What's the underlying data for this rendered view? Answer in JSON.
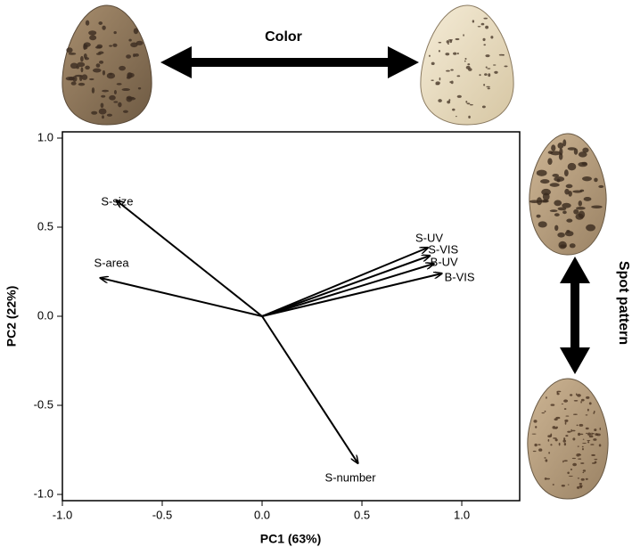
{
  "chart_data": {
    "type": "biplot",
    "xlabel": "PC1 (63%)",
    "ylabel": "PC2 (22%)",
    "annotations": {
      "color": "Color",
      "spot_pattern": "Spot pattern"
    },
    "xlim": [
      -1.0,
      1.29
    ],
    "ylim": [
      -1.035,
      1.035
    ],
    "xticks": [
      {
        "value": -1,
        "label": "-1.0"
      },
      -0.5,
      {
        "value": 0,
        "label": "0.0"
      },
      0.5,
      {
        "value": 1,
        "label": "1.0"
      }
    ],
    "yticks": [
      {
        "value": 1,
        "label": "1.0"
      },
      0.5,
      {
        "value": 0,
        "label": "0.0"
      },
      -0.5,
      {
        "value": -1,
        "label": "-1.0"
      }
    ],
    "color": "#000000",
    "vectors": [
      {
        "label": "S-size",
        "x": -0.73,
        "y": 0.65
      },
      {
        "label": "S-area",
        "x": -0.81,
        "y": 0.215
      },
      {
        "label": "S-UV",
        "x": 0.83,
        "y": 0.385
      },
      {
        "label": "S-VIS",
        "x": 0.84,
        "y": 0.34
      },
      {
        "label": "B-UV",
        "x": 0.86,
        "y": 0.295
      },
      {
        "label": "B-VIS",
        "x": 0.9,
        "y": 0.24
      },
      {
        "label": "S-number",
        "x": 0.48,
        "y": -0.825
      }
    ]
  }
}
